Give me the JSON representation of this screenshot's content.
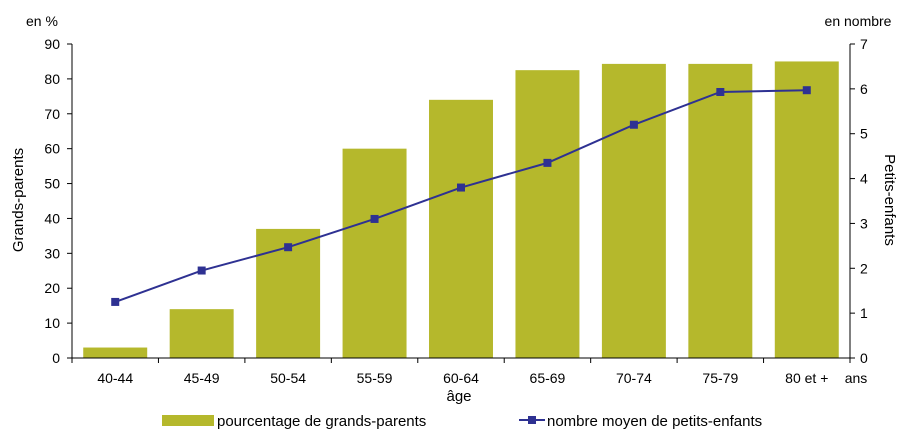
{
  "chart_data": {
    "type": "bar+line",
    "categories": [
      "40-44",
      "45-49",
      "50-54",
      "55-59",
      "60-64",
      "65-69",
      "70-74",
      "75-79",
      "80 et +"
    ],
    "bar_series": {
      "name": "pourcentage de grands-parents",
      "values": [
        3,
        14,
        37,
        60,
        74,
        82.5,
        84.3,
        84.3,
        85
      ],
      "color": "#b5b82c"
    },
    "line_series": {
      "name": "nombre moyen de petits-enfants",
      "values": [
        1.25,
        1.95,
        2.47,
        3.1,
        3.8,
        4.35,
        5.2,
        5.93,
        5.97
      ],
      "color": "#2e3192"
    },
    "left_axis": {
      "unit": "en %",
      "title": "Grands-parents",
      "ylim": [
        0,
        90
      ],
      "ticks": [
        "0",
        "10",
        "20",
        "30",
        "40",
        "50",
        "60",
        "70",
        "80",
        "90"
      ]
    },
    "right_axis": {
      "unit": "en nombre",
      "title": "Petits-enfants",
      "ylim": [
        0,
        7
      ],
      "ticks": [
        "0",
        "1",
        "2",
        "3",
        "4",
        "5",
        "6",
        "7"
      ]
    },
    "x_axis": {
      "title": "âge",
      "unit": "ans"
    },
    "legend_position": "bottom",
    "grid": false
  }
}
